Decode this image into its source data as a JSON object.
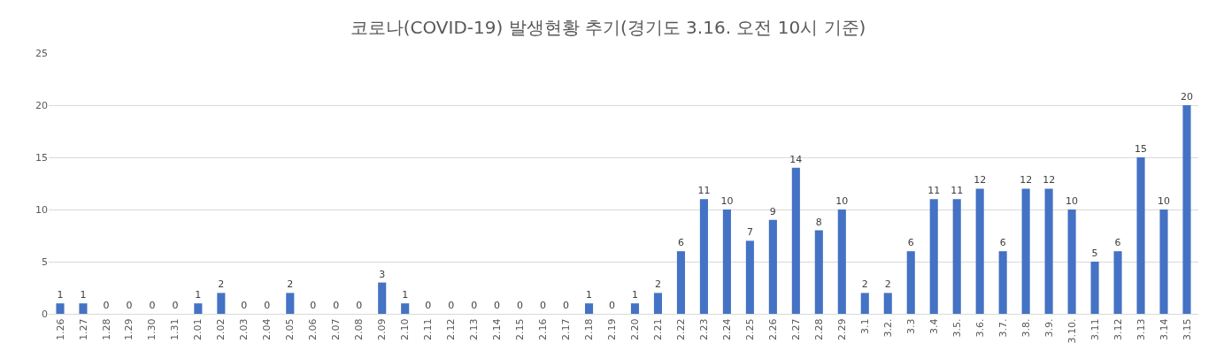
{
  "chart_data": {
    "type": "bar",
    "title": "코로나(COVID-19) 발생현황 추기(경기도 3.16. 오전 10시 기준)",
    "categories": [
      "1.26",
      "1.27",
      "1.28",
      "1.29",
      "1.30",
      "1.31",
      "2.01",
      "2.02",
      "2.03",
      "2.04",
      "2.05",
      "2.06",
      "2.07",
      "2.08",
      "2.09",
      "2.10",
      "2.11",
      "2.12",
      "2.13",
      "2.14",
      "2.15",
      "2.16",
      "2.17",
      "2.18",
      "2.19",
      "2.20",
      "2.21",
      "2.22",
      "2.23",
      "2.24",
      "2.25",
      "2.26",
      "2.27",
      "2.28",
      "2.29",
      "3.1",
      "3.2.",
      "3.3",
      "3.4",
      "3.5.",
      "3.6.",
      "3.7.",
      "3.8.",
      "3.9.",
      "3.10.",
      "3.11",
      "3.12",
      "3.13",
      "3.14",
      "3.15"
    ],
    "values": [
      1,
      1,
      0,
      0,
      0,
      0,
      1,
      2,
      0,
      0,
      2,
      0,
      0,
      0,
      3,
      1,
      0,
      0,
      0,
      0,
      0,
      0,
      0,
      1,
      0,
      1,
      2,
      6,
      11,
      10,
      7,
      9,
      14,
      8,
      10,
      2,
      2,
      6,
      11,
      11,
      12,
      6,
      12,
      12,
      10,
      5,
      6,
      15,
      10,
      20
    ],
    "color": "#4472c4",
    "ylim": [
      0,
      25
    ],
    "yticks": [
      0,
      5,
      10,
      15,
      20,
      25
    ],
    "grid": "y",
    "data_labels": true,
    "legend": false
  }
}
